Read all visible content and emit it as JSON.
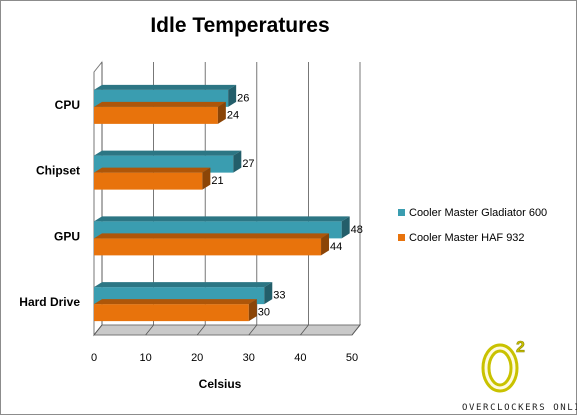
{
  "chart_data": {
    "type": "bar",
    "orientation": "horizontal",
    "style": "3d-clustered",
    "title": "Idle Temperatures",
    "xlabel": "Celsius",
    "ylabel": "",
    "categories": [
      "CPU",
      "Chipset",
      "GPU",
      "Hard Drive"
    ],
    "series": [
      {
        "name": "Cooler Master Gladiator  600",
        "values": [
          26,
          27,
          48,
          33
        ],
        "color": "#3a9db0"
      },
      {
        "name": "Cooler Master HAF 932",
        "values": [
          24,
          21,
          44,
          30
        ],
        "color": "#e8730c"
      }
    ],
    "xlim": [
      0,
      50
    ],
    "xticks": [
      0,
      10,
      20,
      30,
      40,
      50
    ],
    "grid": true,
    "legend": "right",
    "data_labels": true
  },
  "watermark": {
    "logo_text": "O",
    "logo_superscript": "2",
    "caption": "OVERCLOCKERS ONLINE"
  }
}
